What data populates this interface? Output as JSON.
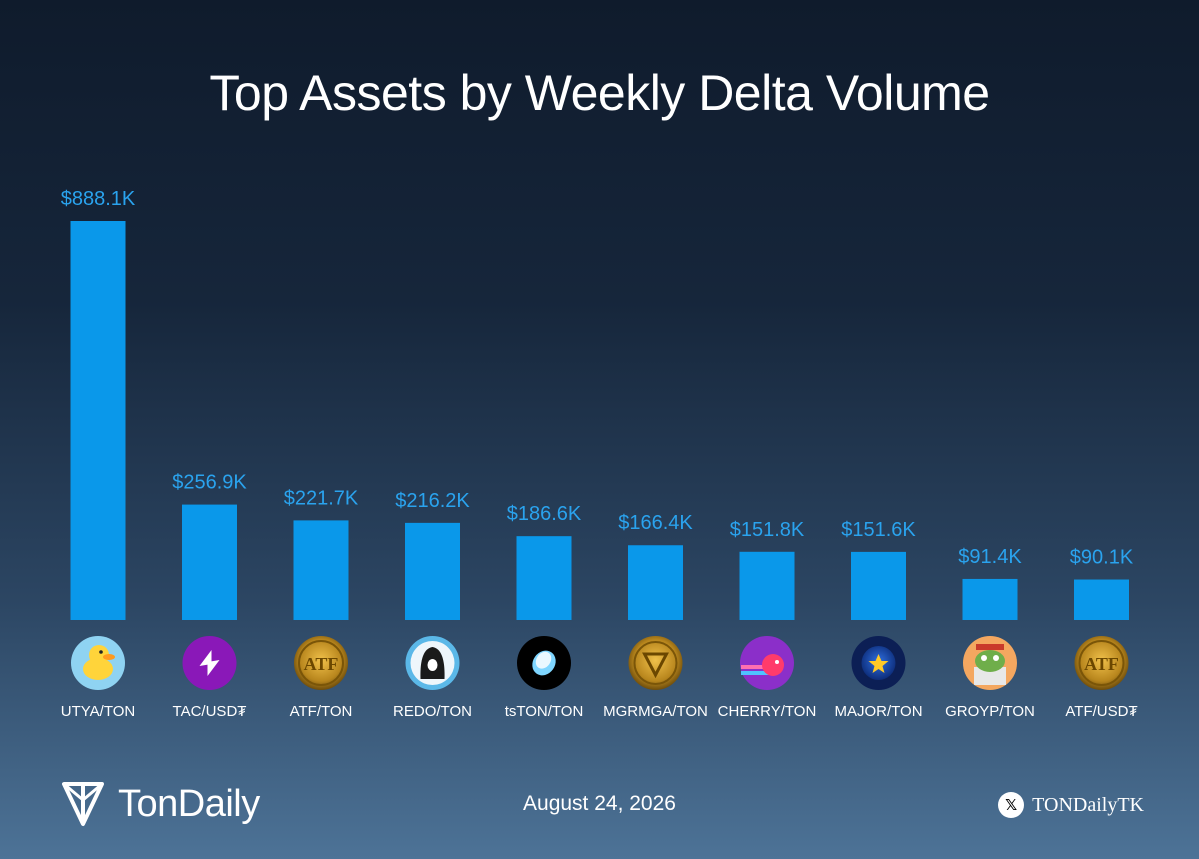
{
  "title": "Top Assets by Weekly Delta Volume",
  "chart_data": {
    "type": "bar",
    "title": "Top Assets by Weekly Delta Volume",
    "categories": [
      "UTYA/TON",
      "TAC/USD₮",
      "ATF/TON",
      "REDO/TON",
      "tsTON/TON",
      "MGRMGA/TON",
      "CHERRY/TON",
      "MAJOR/TON",
      "GROYP/TON",
      "ATF/USD₮"
    ],
    "values": [
      888.1,
      256.9,
      221.7,
      216.2,
      186.6,
      166.4,
      151.8,
      151.6,
      91.4,
      90.1
    ],
    "value_labels": [
      "$888.1K",
      "$256.9K",
      "$221.7K",
      "$216.2K",
      "$186.6K",
      "$166.4K",
      "$151.8K",
      "$151.6K",
      "$91.4K",
      "$90.1K"
    ],
    "ylim": [
      0,
      888.1
    ],
    "grid": false,
    "bar_color": "#0a98ea",
    "icons": [
      "duck-icon",
      "tac-logo-icon",
      "atf-coin-icon",
      "redo-hood-icon",
      "tston-drop-icon",
      "mgrmga-coin-icon",
      "cherry-fish-icon",
      "major-star-icon",
      "groyp-frog-icon",
      "atf-coin-icon"
    ]
  },
  "footer": {
    "brand": "TonDaily",
    "date": "August 24, 2026",
    "handle": "TONDailyTK"
  }
}
